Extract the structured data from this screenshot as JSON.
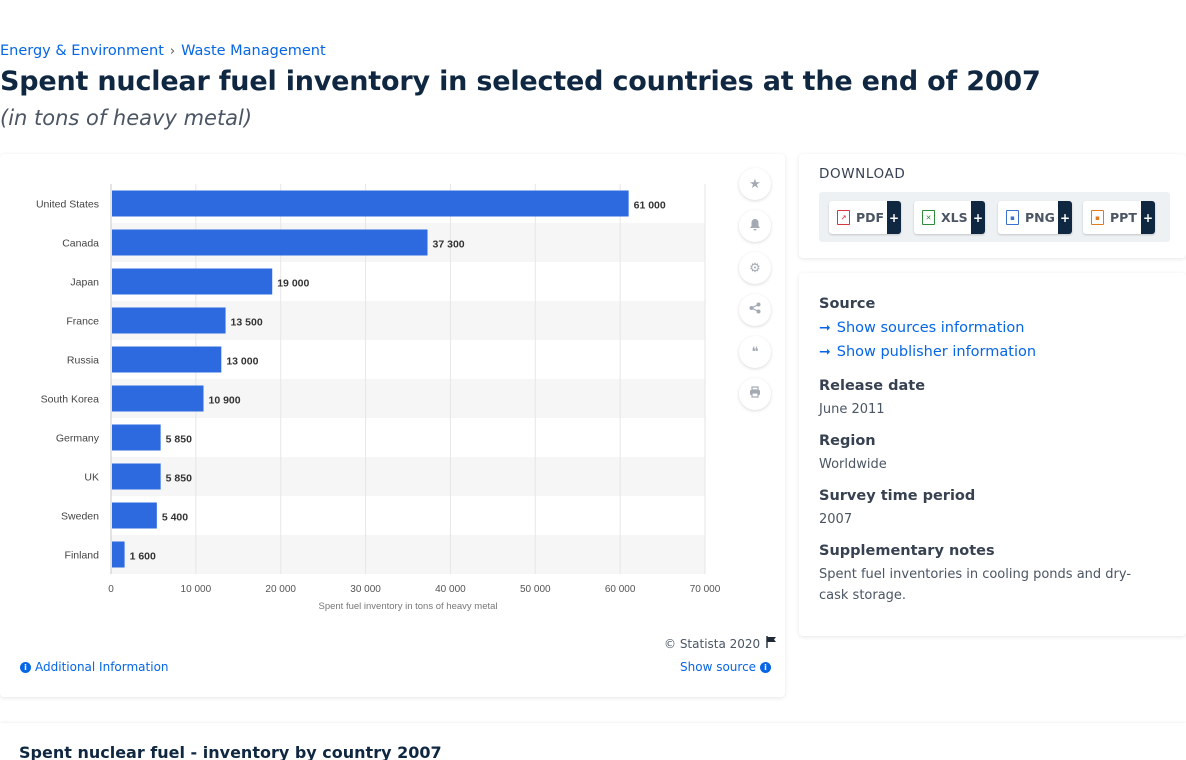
{
  "breadcrumb": {
    "category": "Energy & Environment",
    "separator": "›",
    "subcategory": "Waste Management"
  },
  "header": {
    "title": "Spent nuclear fuel inventory in selected countries at the end of 2007",
    "subtitle": "(in tons of heavy metal)"
  },
  "chart_card": {
    "copyright": "© Statista 2020",
    "additional_info": "Additional Information",
    "show_source": "Show source"
  },
  "chart_data": {
    "type": "bar",
    "orientation": "horizontal",
    "categories": [
      "United States",
      "Canada",
      "Japan",
      "France",
      "Russia",
      "South Korea",
      "Germany",
      "UK",
      "Sweden",
      "Finland"
    ],
    "values": [
      61000,
      37300,
      19000,
      13500,
      13000,
      10900,
      5850,
      5850,
      5400,
      1600
    ],
    "value_labels": [
      "61 000",
      "37 300",
      "19 000",
      "13 500",
      "13 000",
      "10 900",
      "5 850",
      "5 850",
      "5 400",
      "1 600"
    ],
    "xlabel": "Spent fuel inventory in tons of heavy metal",
    "xlim": [
      0,
      70000
    ],
    "xticks": [
      0,
      10000,
      20000,
      30000,
      40000,
      50000,
      60000,
      70000
    ],
    "xtick_labels": [
      "0",
      "10 000",
      "20 000",
      "30 000",
      "40 000",
      "50 000",
      "60 000",
      "70 000"
    ],
    "bar_color": "#2d6ae0",
    "grid": true,
    "alternating_row_shading": true,
    "legend": false
  },
  "tools": [
    {
      "name": "favorite-icon",
      "glyph": "★"
    },
    {
      "name": "notification-icon",
      "glyph": "🔔"
    },
    {
      "name": "settings-icon",
      "glyph": "⚙"
    },
    {
      "name": "share-icon",
      "glyph": "⋖"
    },
    {
      "name": "citation-icon",
      "glyph": "❝"
    },
    {
      "name": "print-icon",
      "glyph": "⎙"
    }
  ],
  "download": {
    "title": "DOWNLOAD",
    "formats": [
      {
        "label": "PDF",
        "color": "#d9363e"
      },
      {
        "label": "XLS",
        "color": "#2e8b3a"
      },
      {
        "label": "PNG",
        "color": "#3b6fd1"
      },
      {
        "label": "PPT",
        "color": "#e07a1f"
      }
    ],
    "plus": "+"
  },
  "info": {
    "source_heading": "Source",
    "show_sources": "Show sources information",
    "show_publisher": "Show publisher information",
    "release_heading": "Release date",
    "release_value": "June 2011",
    "region_heading": "Region",
    "region_value": "Worldwide",
    "survey_heading": "Survey time period",
    "survey_value": "2007",
    "notes_heading": "Supplementary notes",
    "notes_value": "Spent fuel inventories in cooling ponds and dry-cask storage."
  },
  "related": {
    "title": "Spent nuclear fuel - inventory by country 2007"
  }
}
